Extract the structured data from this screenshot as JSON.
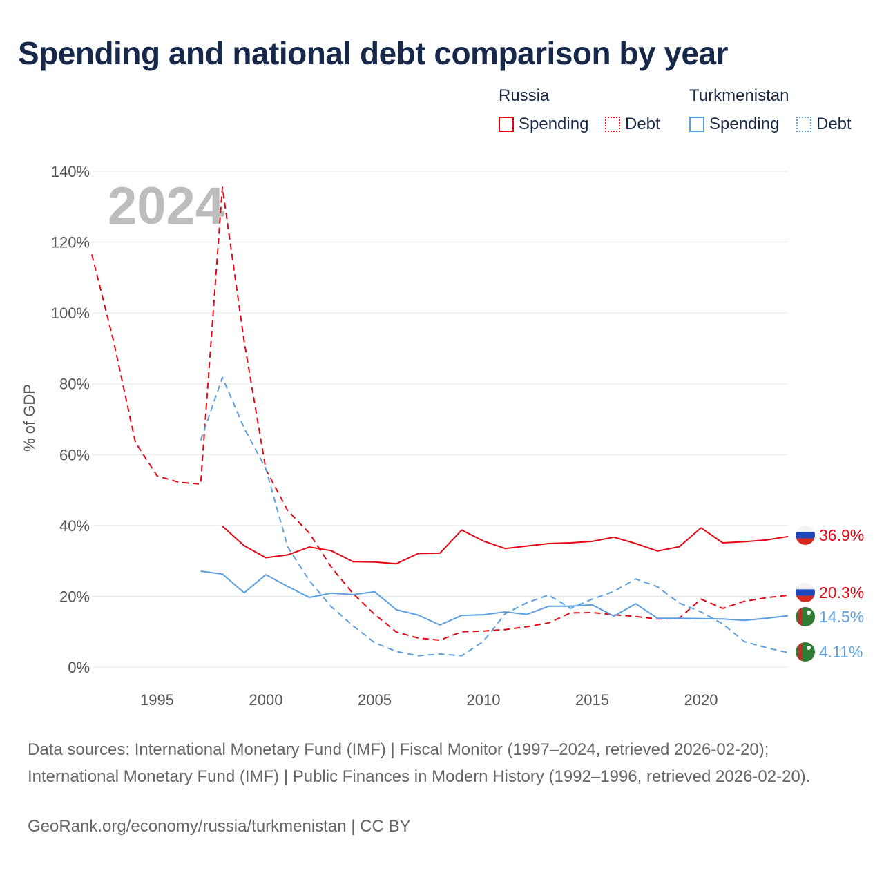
{
  "title": "Spending and national debt comparison by year",
  "legend": {
    "groups": [
      {
        "name": "Russia",
        "items": [
          "Spending",
          "Debt"
        ]
      },
      {
        "name": "Turkmenistan",
        "items": [
          "Spending",
          "Debt"
        ]
      }
    ]
  },
  "colors": {
    "russia": "#e30613",
    "turkmenistan": "#5b9fe0",
    "grid": "#e6e6e6",
    "year_watermark": "#bdbdbd"
  },
  "chart_data": {
    "type": "line",
    "title": "Spending and national debt comparison by year",
    "watermark": "2024",
    "xlabel": "",
    "ylabel": "% of GDP",
    "xlim": [
      1992,
      2024
    ],
    "ylim": [
      0,
      140
    ],
    "x_ticks": [
      1995,
      2000,
      2005,
      2010,
      2015,
      2020
    ],
    "x_tick_labels": [
      "1995",
      "2000",
      "2005",
      "2010",
      "2015",
      "2020"
    ],
    "y_ticks": [
      0,
      20,
      40,
      60,
      80,
      100,
      120,
      140
    ],
    "y_tick_labels": [
      "0%",
      "20%",
      "40%",
      "60%",
      "80%",
      "100%",
      "120%",
      "140%"
    ],
    "series": [
      {
        "name": "Russia Spending",
        "country": "Russia",
        "kind": "Spending",
        "style": "solid",
        "color": "#e30613",
        "x": [
          1998,
          1999,
          2000,
          2001,
          2002,
          2003,
          2004,
          2005,
          2006,
          2007,
          2008,
          2009,
          2010,
          2011,
          2012,
          2013,
          2014,
          2015,
          2016,
          2017,
          2018,
          2019,
          2020,
          2021,
          2022,
          2023,
          2024
        ],
        "values": [
          39.8,
          34.3,
          30.9,
          31.7,
          33.9,
          32.9,
          29.8,
          29.7,
          29.2,
          32.1,
          32.2,
          38.7,
          35.6,
          33.5,
          34.2,
          34.9,
          35.1,
          35.5,
          36.7,
          34.9,
          32.8,
          34.0,
          39.3,
          35.1,
          35.4,
          35.9,
          36.9
        ],
        "end_label": "36.9%"
      },
      {
        "name": "Russia Debt",
        "country": "Russia",
        "kind": "Debt",
        "style": "dashed",
        "color": "#e30613",
        "x": [
          1992,
          1993,
          1994,
          1995,
          1996,
          1997,
          1998,
          1999,
          2000,
          2001,
          2002,
          2003,
          2004,
          2005,
          2006,
          2007,
          2008,
          2009,
          2010,
          2011,
          2012,
          2013,
          2014,
          2015,
          2016,
          2017,
          2018,
          2019,
          2020,
          2021,
          2022,
          2023,
          2024
        ],
        "values": [
          116.5,
          92.0,
          63.5,
          54.0,
          52.2,
          51.7,
          135.5,
          92.0,
          55.8,
          44.2,
          37.8,
          28.3,
          20.8,
          14.9,
          9.9,
          8.2,
          7.6,
          10.0,
          10.2,
          10.6,
          11.4,
          12.5,
          15.3,
          15.4,
          14.8,
          14.3,
          13.6,
          13.8,
          19.2,
          16.6,
          18.6,
          19.6,
          20.3
        ],
        "end_label": "20.3%"
      },
      {
        "name": "Turkmenistan Spending",
        "country": "Turkmenistan",
        "kind": "Spending",
        "style": "solid",
        "color": "#5b9fe0",
        "x": [
          1997,
          1998,
          1999,
          2000,
          2001,
          2002,
          2003,
          2004,
          2005,
          2006,
          2007,
          2008,
          2009,
          2010,
          2011,
          2012,
          2013,
          2014,
          2015,
          2016,
          2017,
          2018,
          2019,
          2020,
          2021,
          2022,
          2023,
          2024
        ],
        "values": [
          27.1,
          26.3,
          21.0,
          26.1,
          22.8,
          19.7,
          20.9,
          20.5,
          21.3,
          16.2,
          14.7,
          11.9,
          14.6,
          14.8,
          15.6,
          14.9,
          17.2,
          17.2,
          17.6,
          14.4,
          17.9,
          13.8,
          13.8,
          13.7,
          13.6,
          13.2,
          13.8,
          14.5
        ],
        "end_label": "14.5%"
      },
      {
        "name": "Turkmenistan Debt",
        "country": "Turkmenistan",
        "kind": "Debt",
        "style": "dashed",
        "color": "#5b9fe0",
        "x": [
          1997,
          1998,
          1999,
          2000,
          2001,
          2002,
          2003,
          2004,
          2005,
          2006,
          2007,
          2008,
          2009,
          2010,
          2011,
          2012,
          2013,
          2014,
          2015,
          2016,
          2017,
          2018,
          2019,
          2020,
          2021,
          2022,
          2023,
          2024
        ],
        "values": [
          64.0,
          81.8,
          67.5,
          56.0,
          34.0,
          24.4,
          17.1,
          11.7,
          6.9,
          4.4,
          3.2,
          3.7,
          3.2,
          7.3,
          15.1,
          18.2,
          20.4,
          16.6,
          19.2,
          21.4,
          24.9,
          22.7,
          18.1,
          15.6,
          12.2,
          7.2,
          5.5,
          4.11
        ],
        "end_label": "4.11%"
      }
    ]
  },
  "sources": {
    "line": "Data sources: International Monetary Fund (IMF) | Fiscal Monitor (1997–2024, retrieved 2026-02-20); International Monetary Fund (IMF) | Public Finances in Modern History (1992–1996, retrieved 2026-02-20).",
    "credit": "GeoRank.org/economy/russia/turkmenistan | CC BY"
  }
}
